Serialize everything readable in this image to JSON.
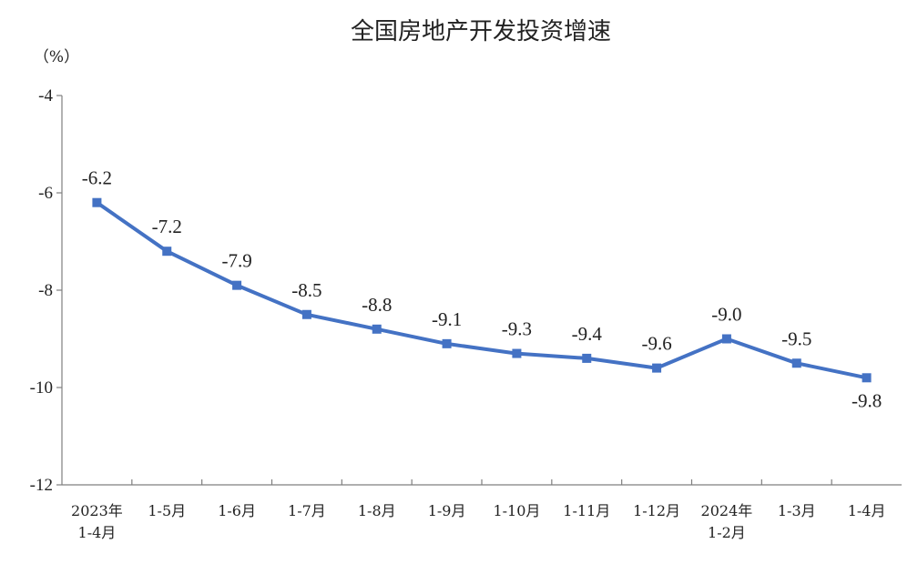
{
  "chart_data": {
    "type": "line",
    "title": "全国房地产开发投资增速",
    "ylabel": "（%）",
    "xlabel": "",
    "ylim": [
      -12,
      -4
    ],
    "yticks": [
      -4,
      -6,
      -8,
      -10,
      -12
    ],
    "grid": false,
    "categories": [
      [
        "2023年",
        "1-4月"
      ],
      [
        "1-5月"
      ],
      [
        "1-6月"
      ],
      [
        "1-7月"
      ],
      [
        "1-8月"
      ],
      [
        "1-9月"
      ],
      [
        "1-10月"
      ],
      [
        "1-11月"
      ],
      [
        "1-12月"
      ],
      [
        "2024年",
        "1-2月"
      ],
      [
        "1-3月"
      ],
      [
        "1-4月"
      ]
    ],
    "series": [
      {
        "name": "",
        "values": [
          -6.2,
          -7.2,
          -7.9,
          -8.5,
          -8.8,
          -9.1,
          -9.3,
          -9.4,
          -9.6,
          -9.0,
          -9.5,
          -9.8
        ],
        "labels": [
          "-6.2",
          "-7.2",
          "-7.9",
          "-8.5",
          "-8.8",
          "-9.1",
          "-9.3",
          "-9.4",
          "-9.6",
          "-9.0",
          "-9.5",
          "-9.8"
        ],
        "color": "#4472c4"
      }
    ]
  }
}
